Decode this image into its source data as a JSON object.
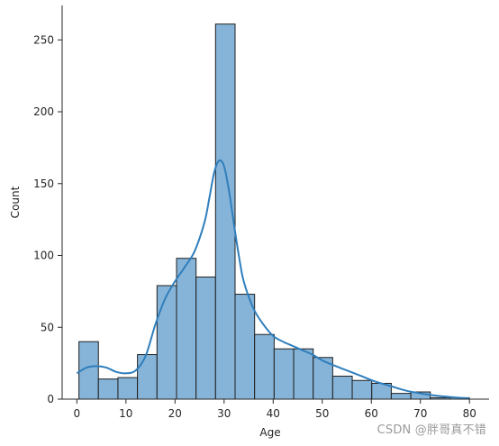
{
  "chart_data": {
    "type": "bar",
    "title": "",
    "xlabel": "Age",
    "ylabel": "Count",
    "xlim": [
      -3,
      84
    ],
    "ylim": [
      0,
      274
    ],
    "bin_edges": [
      0.42,
      4.39,
      8.37,
      12.35,
      16.33,
      20.31,
      24.29,
      28.26,
      32.24,
      36.22,
      40.2,
      44.18,
      48.16,
      52.13,
      56.11,
      60.09,
      64.07,
      68.05,
      72.02,
      76.0,
      79.98
    ],
    "counts": [
      40,
      14,
      15,
      31,
      79,
      98,
      85,
      261,
      73,
      45,
      35,
      35,
      29,
      16,
      13,
      11,
      4,
      5,
      1,
      1
    ],
    "x_ticks": [
      0,
      10,
      20,
      30,
      40,
      50,
      60,
      70,
      80
    ],
    "y_ticks": [
      0,
      50,
      100,
      150,
      200,
      250
    ],
    "kde": {
      "x": [
        0,
        2,
        4,
        6,
        8,
        10,
        12,
        14,
        16,
        18,
        20,
        22,
        24,
        26,
        27,
        28,
        29,
        30,
        31,
        32,
        33,
        34,
        36,
        38,
        40,
        42,
        44,
        46,
        48,
        50,
        52,
        55,
        58,
        61,
        64,
        67,
        70,
        73,
        76,
        80
      ],
      "y": [
        18,
        22,
        23,
        22,
        19,
        18,
        20,
        30,
        52,
        70,
        82,
        92,
        103,
        123,
        140,
        158,
        166,
        162,
        145,
        122,
        100,
        82,
        63,
        52,
        44,
        40,
        37,
        34,
        31,
        27,
        24,
        20,
        16,
        12,
        9,
        6,
        4,
        2.5,
        1.5,
        0.5
      ]
    },
    "grid": false,
    "legend": "none",
    "bar_color": "#86b4d8",
    "bar_edge_color": "#1f1f1f",
    "kde_color": "#2f7ebc"
  },
  "watermark": "CSDN @胖哥真不错"
}
